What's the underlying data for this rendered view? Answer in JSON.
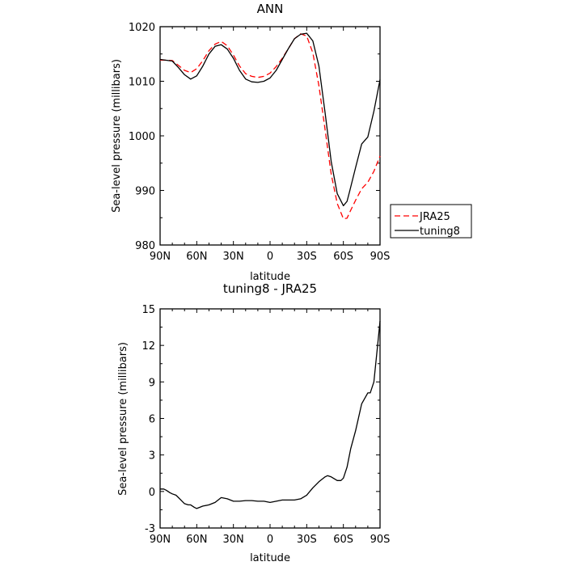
{
  "chart_data": [
    {
      "type": "line",
      "title": "ANN",
      "xlabel": "latitude",
      "ylabel": "Sea-level pressure (millibars)",
      "xlim": [
        90,
        -90
      ],
      "ylim": [
        980,
        1020
      ],
      "x_ticks": [
        90,
        60,
        30,
        0,
        -30,
        -60,
        -90
      ],
      "x_tick_labels": [
        "90N",
        "60N",
        "30N",
        "0",
        "30S",
        "60S",
        "90S"
      ],
      "y_ticks": [
        980,
        990,
        1000,
        1010,
        1020
      ],
      "y_tick_labels": [
        "980",
        "990",
        "1000",
        "1010",
        "1020"
      ],
      "grid": false,
      "legend_placement": "outside-right",
      "series": [
        {
          "name": "JRA25",
          "color": "#ff0000",
          "dash": "dashed",
          "x": [
            90,
            80,
            75,
            70,
            65,
            60,
            55,
            50,
            45,
            40,
            35,
            30,
            25,
            20,
            15,
            10,
            5,
            0,
            -5,
            -10,
            -15,
            -20,
            -25,
            -30,
            -35,
            -40,
            -45,
            -50,
            -55,
            -60,
            -63,
            -65,
            -70,
            -75,
            -80,
            -85,
            -90
          ],
          "y": [
            1013.9,
            1013.8,
            1012.9,
            1012.0,
            1011.6,
            1012.3,
            1013.8,
            1015.6,
            1016.8,
            1017.3,
            1016.5,
            1014.8,
            1012.8,
            1011.4,
            1010.9,
            1010.7,
            1010.9,
            1011.5,
            1012.7,
            1014.2,
            1016.0,
            1017.8,
            1018.7,
            1018.3,
            1015.2,
            1009.2,
            1001.2,
            993.0,
            987.6,
            984.8,
            984.9,
            985.9,
            988.2,
            990.3,
            991.5,
            993.5,
            996.3
          ]
        },
        {
          "name": "tuning8",
          "color": "#000000",
          "dash": "solid",
          "x": [
            90,
            80,
            75,
            70,
            65,
            60,
            55,
            50,
            45,
            40,
            35,
            30,
            25,
            20,
            15,
            10,
            5,
            0,
            -5,
            -10,
            -15,
            -20,
            -25,
            -30,
            -35,
            -40,
            -45,
            -50,
            -55,
            -60,
            -63,
            -65,
            -70,
            -75,
            -80,
            -85,
            -90
          ],
          "y": [
            1014.0,
            1013.7,
            1012.5,
            1011.2,
            1010.4,
            1011.0,
            1012.8,
            1015.0,
            1016.4,
            1016.7,
            1015.9,
            1014.2,
            1012.0,
            1010.4,
            1009.9,
            1009.8,
            1010.0,
            1010.6,
            1012.0,
            1014.0,
            1016.0,
            1017.8,
            1018.6,
            1018.8,
            1017.4,
            1012.8,
            1004.3,
            995.3,
            989.4,
            987.2,
            988.0,
            989.7,
            994.2,
            998.5,
            999.8,
            1004.5,
            1010.3
          ]
        }
      ]
    },
    {
      "type": "line",
      "title": "tuning8 - JRA25",
      "xlabel": "latitude",
      "ylabel": "Sea-level pressure (millibars)",
      "xlim": [
        90,
        -90
      ],
      "ylim": [
        -3,
        15
      ],
      "x_ticks": [
        90,
        60,
        30,
        0,
        -30,
        -60,
        -90
      ],
      "x_tick_labels": [
        "90N",
        "60N",
        "30N",
        "0",
        "30S",
        "60S",
        "90S"
      ],
      "y_ticks": [
        -3,
        0,
        3,
        6,
        9,
        12,
        15
      ],
      "y_tick_labels": [
        "-3",
        "0",
        "3",
        "6",
        "9",
        "12",
        "15"
      ],
      "grid": false,
      "series": [
        {
          "color": "#000000",
          "dash": "solid",
          "x": [
            90,
            87,
            85,
            82,
            80,
            77,
            75,
            72,
            70,
            67,
            65,
            62,
            60,
            55,
            50,
            45,
            40,
            35,
            30,
            25,
            20,
            15,
            10,
            5,
            0,
            -5,
            -10,
            -15,
            -20,
            -25,
            -30,
            -35,
            -40,
            -45,
            -47,
            -50,
            -55,
            -58,
            -60,
            -63,
            -66,
            -70,
            -75,
            -80,
            -82,
            -85,
            -88,
            -90
          ],
          "y": [
            0.2,
            0.2,
            0.1,
            -0.1,
            -0.2,
            -0.3,
            -0.5,
            -0.8,
            -1.0,
            -1.1,
            -1.1,
            -1.3,
            -1.4,
            -1.2,
            -1.1,
            -0.9,
            -0.5,
            -0.6,
            -0.8,
            -0.8,
            -0.75,
            -0.75,
            -0.8,
            -0.8,
            -0.9,
            -0.8,
            -0.7,
            -0.7,
            -0.7,
            -0.6,
            -0.3,
            0.3,
            0.8,
            1.2,
            1.3,
            1.2,
            0.9,
            0.9,
            1.1,
            2.0,
            3.5,
            5.0,
            7.2,
            8.1,
            8.1,
            9.0,
            12.0,
            14.0
          ]
        }
      ]
    }
  ]
}
